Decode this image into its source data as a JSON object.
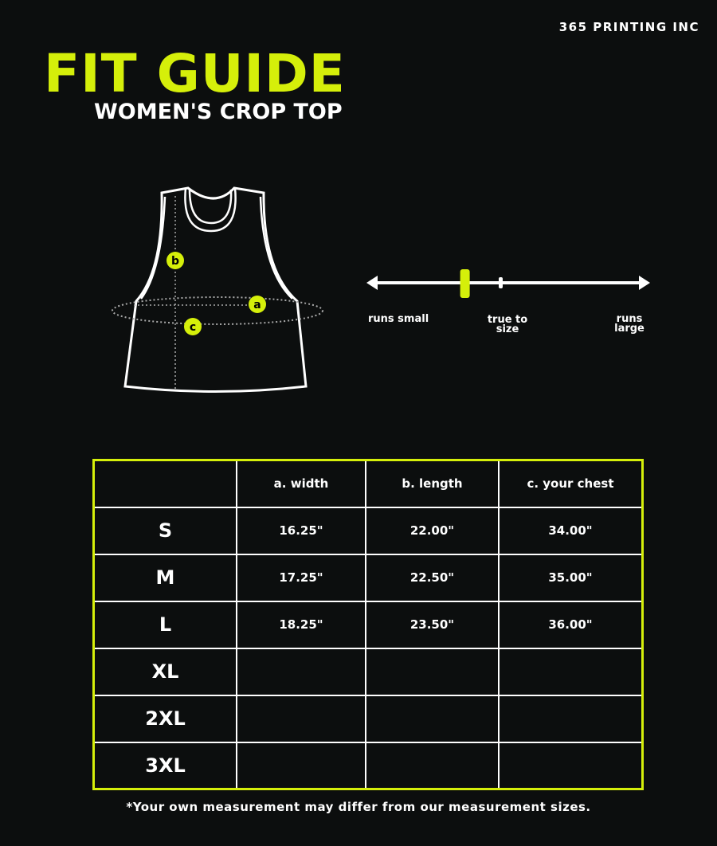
{
  "brand": "365 PRINTING INC",
  "title": "FIT GUIDE",
  "subtitle": "WOMEN'S CROP TOP",
  "colors": {
    "accent": "#d5ef0a",
    "background": "#0c0e0e",
    "line": "#ffffff"
  },
  "diagram": {
    "markers": [
      "a",
      "b",
      "c"
    ]
  },
  "fit_scale": {
    "labels": {
      "small": "runs small",
      "true": "true to size",
      "large": "runs large"
    },
    "position_fraction": 0.34
  },
  "table": {
    "headers": [
      "",
      "a. width",
      "b. length",
      "c. your chest"
    ],
    "rows": [
      {
        "size": "S",
        "width": "16.25\"",
        "length": "22.00\"",
        "chest": "34.00\""
      },
      {
        "size": "M",
        "width": "17.25\"",
        "length": "22.50\"",
        "chest": "35.00\""
      },
      {
        "size": "L",
        "width": "18.25\"",
        "length": "23.50\"",
        "chest": "36.00\""
      },
      {
        "size": "XL",
        "width": "",
        "length": "",
        "chest": ""
      },
      {
        "size": "2XL",
        "width": "",
        "length": "",
        "chest": ""
      },
      {
        "size": "3XL",
        "width": "",
        "length": "",
        "chest": ""
      }
    ]
  },
  "note": "*Your own measurement may differ from our measurement sizes."
}
